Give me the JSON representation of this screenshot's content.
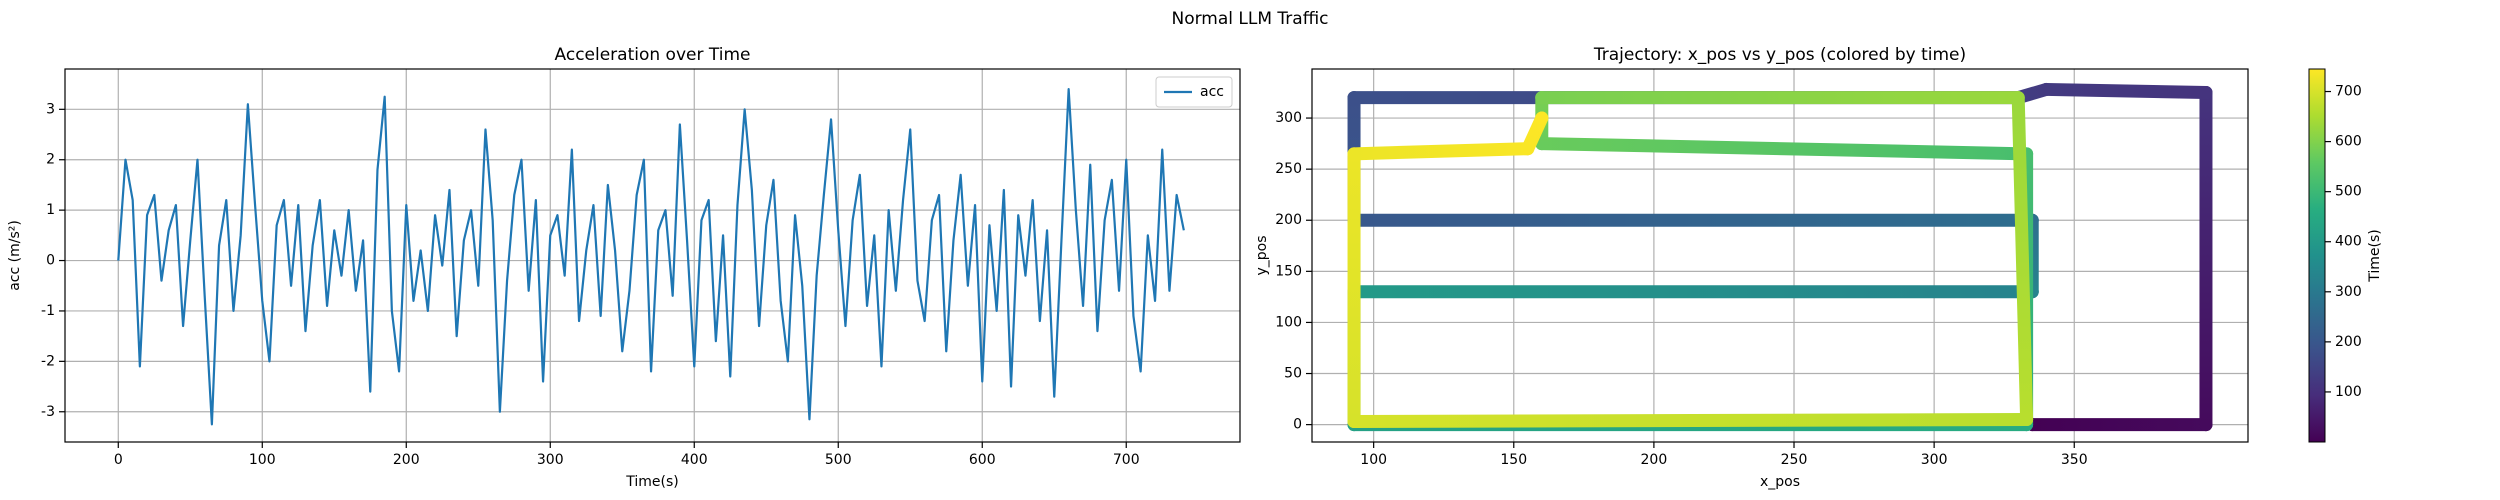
{
  "title": "Normal LLM Traffic",
  "chart_data": [
    {
      "type": "line",
      "title": "Acceleration over Time",
      "xlabel": "Time(s)",
      "ylabel": "acc (m/s²)",
      "xlim": [
        -37,
        779
      ],
      "ylim": [
        -3.6,
        3.8
      ],
      "xticks": [
        0,
        100,
        200,
        300,
        400,
        500,
        600,
        700
      ],
      "yticks": [
        -3,
        -2,
        -1,
        0,
        1,
        2,
        3
      ],
      "grid": true,
      "legend": "upper right",
      "x": [
        0,
        5,
        10,
        15,
        20,
        25,
        30,
        35,
        40,
        45,
        50,
        55,
        60,
        65,
        70,
        75,
        80,
        85,
        90,
        95,
        100,
        105,
        110,
        115,
        120,
        125,
        130,
        135,
        140,
        145,
        150,
        155,
        160,
        165,
        170,
        175,
        180,
        185,
        190,
        195,
        200,
        205,
        210,
        215,
        220,
        225,
        230,
        235,
        240,
        245,
        250,
        255,
        260,
        265,
        270,
        275,
        280,
        285,
        290,
        295,
        300,
        305,
        310,
        315,
        320,
        325,
        330,
        335,
        340,
        345,
        350,
        355,
        360,
        365,
        370,
        375,
        380,
        385,
        390,
        395,
        400,
        405,
        410,
        415,
        420,
        425,
        430,
        435,
        440,
        445,
        450,
        455,
        460,
        465,
        470,
        475,
        480,
        485,
        490,
        495,
        500,
        505,
        510,
        515,
        520,
        525,
        530,
        535,
        540,
        545,
        550,
        555,
        560,
        565,
        570,
        575,
        580,
        585,
        590,
        595,
        600,
        605,
        610,
        615,
        620,
        625,
        630,
        635,
        640,
        645,
        650,
        655,
        660,
        665,
        670,
        675,
        680,
        685,
        690,
        695,
        700,
        705,
        710,
        715,
        720,
        725,
        730,
        735,
        740
      ],
      "series": [
        {
          "name": "acc",
          "color": "#1f77b4",
          "values": [
            0,
            2.0,
            1.2,
            -2.1,
            0.9,
            1.3,
            -0.4,
            0.6,
            1.1,
            -1.3,
            0.4,
            2.0,
            -0.7,
            -3.25,
            0.3,
            1.2,
            -1.0,
            0.5,
            3.1,
            1.1,
            -0.8,
            -2.0,
            0.7,
            1.2,
            -0.5,
            1.1,
            -1.4,
            0.3,
            1.2,
            -0.9,
            0.6,
            -0.3,
            1.0,
            -0.6,
            0.4,
            -2.6,
            1.8,
            3.25,
            -1.0,
            -2.2,
            1.1,
            -0.8,
            0.2,
            -1.0,
            0.9,
            -0.1,
            1.4,
            -1.5,
            0.4,
            1.0,
            -0.5,
            2.6,
            0.8,
            -3.0,
            -0.4,
            1.3,
            2.0,
            -0.6,
            1.2,
            -2.4,
            0.5,
            0.9,
            -0.3,
            2.2,
            -1.2,
            0.2,
            1.1,
            -1.1,
            1.5,
            0.2,
            -1.8,
            -0.6,
            1.3,
            2.0,
            -2.2,
            0.6,
            1.0,
            -0.7,
            2.7,
            0.4,
            -2.1,
            0.8,
            1.2,
            -1.6,
            0.5,
            -2.3,
            1.1,
            3.0,
            1.4,
            -1.3,
            0.7,
            1.6,
            -0.8,
            -2.0,
            0.9,
            -0.5,
            -3.15,
            -0.3,
            1.3,
            2.8,
            0.6,
            -1.3,
            0.8,
            1.7,
            -0.9,
            0.5,
            -2.1,
            1.0,
            -0.6,
            1.2,
            2.6,
            -0.4,
            -1.2,
            0.8,
            1.3,
            -1.8,
            0.4,
            1.7,
            -0.5,
            1.1,
            -2.4,
            0.7,
            -1.0,
            1.4,
            -2.5,
            0.9,
            -0.3,
            1.2,
            -1.2,
            0.6,
            -2.7,
            0.4,
            3.4,
            1.0,
            -0.9,
            1.9,
            -1.4,
            0.8,
            1.6,
            -0.6,
            2.0,
            -1.1,
            -2.2,
            0.5,
            -0.8,
            2.2,
            -0.6,
            1.3,
            0.6
          ]
        }
      ]
    },
    {
      "type": "scatter",
      "title": "Trajectory: x_pos vs y_pos (colored by time)",
      "xlabel": "x_pos",
      "ylabel": "y_pos",
      "xlim": [
        78,
        412
      ],
      "ylim": [
        -17,
        348
      ],
      "xticks": [
        100,
        150,
        200,
        250,
        300,
        350
      ],
      "yticks": [
        0,
        50,
        100,
        150,
        200,
        250,
        300
      ],
      "grid": true,
      "colormap": "viridis",
      "colorbar_label": "Time(s)",
      "clim": [
        0,
        745
      ],
      "cticks": [
        100,
        200,
        300,
        400,
        500,
        600,
        700
      ],
      "x": [
        335,
        397,
        397,
        340,
        330,
        93,
        93,
        330,
        335,
        335,
        93,
        93,
        333,
        333,
        160,
        160,
        330,
        333,
        93,
        93,
        155,
        160
      ],
      "y": [
        0,
        0,
        325,
        328,
        320,
        320,
        200,
        200,
        200,
        130,
        130,
        0,
        0,
        265,
        275,
        320,
        320,
        5,
        3,
        265,
        270,
        300
      ],
      "c": [
        0,
        20,
        110,
        125,
        135,
        180,
        205,
        265,
        270,
        330,
        400,
        425,
        455,
        520,
        570,
        590,
        630,
        665,
        700,
        725,
        740,
        745
      ]
    }
  ]
}
